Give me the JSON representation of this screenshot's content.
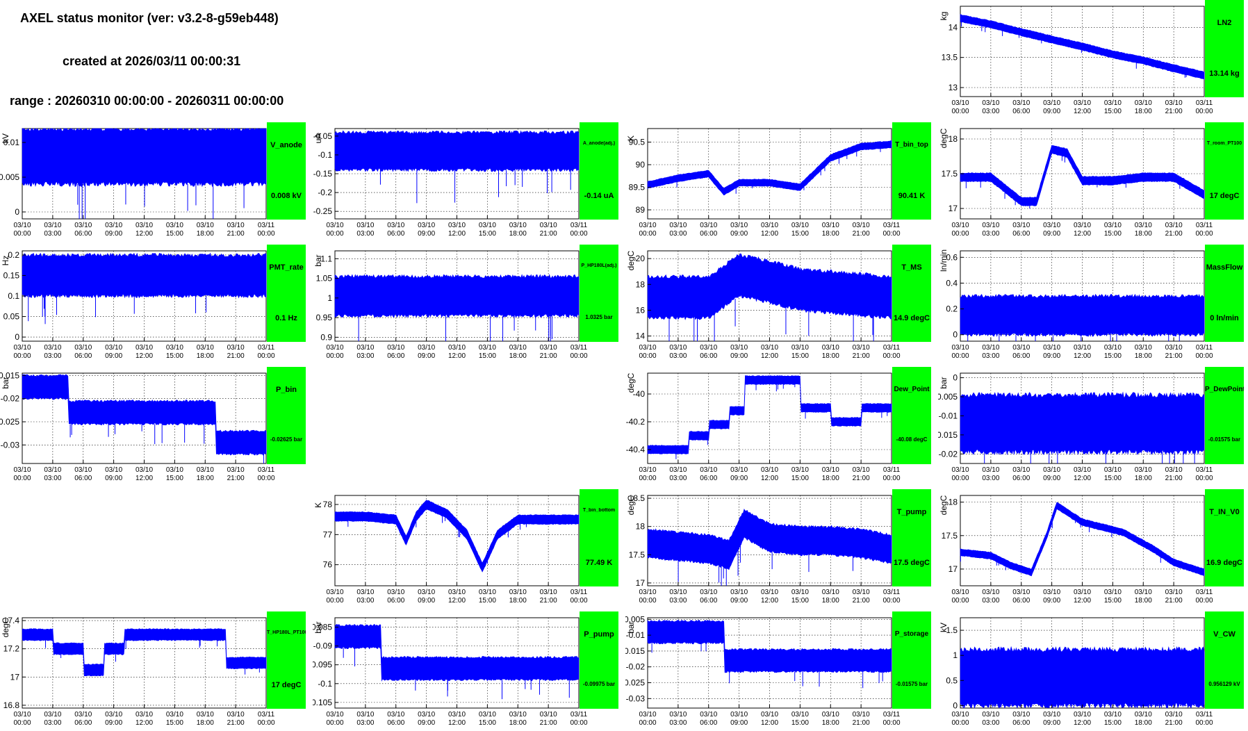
{
  "header": {
    "title": "AXEL status monitor (ver: v3.2-8-g59eb448)",
    "created": "created at 2026/03/11 00:00:31",
    "range": "range : 20260310 00:00:00 - 20260311 00:00:00"
  },
  "colors": {
    "series": "#0000ff",
    "status": "#00ff00",
    "background": "#ffffff"
  },
  "x_axis": {
    "ticks_l1": [
      "03/10",
      "03/10",
      "03/10",
      "03/10",
      "03/10",
      "03/10",
      "03/10",
      "03/10",
      "03/11"
    ],
    "ticks_l2": [
      "00:00",
      "03:00",
      "06:00",
      "09:00",
      "12:00",
      "15:00",
      "18:00",
      "21:00",
      "00:00"
    ]
  },
  "chart_data": [
    {
      "id": "LN2",
      "type": "line",
      "name": "LN2",
      "value_label": "13.14 kg",
      "unit": "kg",
      "ylim": [
        12.85,
        14.35
      ],
      "yticks": [
        "13",
        "13.5",
        "14"
      ],
      "ytick_values": [
        13,
        13.5,
        14
      ],
      "x": [
        0,
        3,
        6,
        9,
        12,
        15,
        18,
        21,
        24
      ],
      "y": [
        14.15,
        14.05,
        13.92,
        13.8,
        13.68,
        13.55,
        13.45,
        13.32,
        13.2
      ],
      "band": 0.12
    },
    {
      "id": "V_anode",
      "type": "line",
      "name": "V_anode",
      "value_label": "0.008 kV",
      "unit": "kV",
      "ylim": [
        -0.001,
        0.012
      ],
      "yticks": [
        "0",
        "0.005",
        "0.01"
      ],
      "ytick_values": [
        0,
        0.005,
        0.01
      ],
      "x": [
        0,
        24
      ],
      "y": [
        0.008,
        0.008
      ],
      "band": 0.008
    },
    {
      "id": "A_anode",
      "type": "line",
      "name": "A_anode(adj.)",
      "value_label": "-0.14 uA",
      "unit": "uA",
      "ylim": [
        -0.27,
        -0.03
      ],
      "yticks": [
        "-0.25",
        "-0.2",
        "-0.15",
        "-0.1",
        "-0.05"
      ],
      "ytick_values": [
        -0.25,
        -0.2,
        -0.15,
        -0.1,
        -0.05
      ],
      "x": [
        0,
        24
      ],
      "y": [
        -0.09,
        -0.09
      ],
      "band": 0.1
    },
    {
      "id": "T_bin_top",
      "type": "line",
      "name": "T_bin_top",
      "value_label": "90.41 K",
      "unit": "K",
      "ylim": [
        88.8,
        90.8
      ],
      "yticks": [
        "89",
        "89.5",
        "90",
        "90.5"
      ],
      "ytick_values": [
        89,
        89.5,
        90,
        90.5
      ],
      "x": [
        0,
        3,
        6,
        7.5,
        9,
        12,
        15,
        18,
        21,
        24
      ],
      "y": [
        89.55,
        89.7,
        89.8,
        89.4,
        89.6,
        89.6,
        89.5,
        90.15,
        90.4,
        90.45
      ],
      "band": 0.15
    },
    {
      "id": "T_room_PT100",
      "type": "line",
      "name": "T_room_PT100",
      "value_label": "17 degC",
      "unit": "degC",
      "ylim": [
        16.85,
        18.15
      ],
      "yticks": [
        "17",
        "17.5",
        "18"
      ],
      "ytick_values": [
        17,
        17.5,
        18
      ],
      "x": [
        0,
        3,
        6,
        7.5,
        9,
        10.5,
        12,
        15,
        18,
        21,
        24
      ],
      "y": [
        17.45,
        17.45,
        17.1,
        17.1,
        17.85,
        17.8,
        17.4,
        17.4,
        17.45,
        17.45,
        17.2
      ],
      "band": 0.12
    },
    {
      "id": "PMT_rate",
      "type": "line",
      "name": "PMT_rate",
      "value_label": "0.1 Hz",
      "unit": "Hz",
      "ylim": [
        -0.01,
        0.21
      ],
      "yticks": [
        "0",
        "0.05",
        "0.1",
        "0.15",
        "0.2"
      ],
      "ytick_values": [
        0,
        0.05,
        0.1,
        0.15,
        0.2
      ],
      "x": [
        0,
        24
      ],
      "y": [
        0.15,
        0.15
      ],
      "band": 0.1
    },
    {
      "id": "P_HP180L",
      "type": "line",
      "name": "P_HP180L(adj.)",
      "value_label": "1.0325 bar",
      "unit": "bar",
      "ylim": [
        0.89,
        1.12
      ],
      "yticks": [
        "0.9",
        "0.95",
        "1",
        "1.05",
        "1.1"
      ],
      "ytick_values": [
        0.9,
        0.95,
        1,
        1.05,
        1.1
      ],
      "x": [
        0,
        24
      ],
      "y": [
        1.005,
        1.005
      ],
      "band": 0.1
    },
    {
      "id": "T_MS",
      "type": "line",
      "name": "T_MS",
      "value_label": "14.9 degC",
      "unit": "degC",
      "ylim": [
        13.6,
        20.6
      ],
      "yticks": [
        "14",
        "16",
        "18",
        "20"
      ],
      "ytick_values": [
        14,
        16,
        18,
        20
      ],
      "x": [
        0,
        6,
        9,
        12,
        15,
        18,
        21,
        24
      ],
      "y": [
        17,
        17,
        18.7,
        18.2,
        17.6,
        17.4,
        17.2,
        17
      ],
      "band": 3.2
    },
    {
      "id": "MassFlow",
      "type": "line",
      "name": "MassFlow",
      "value_label": "0 ln/min",
      "unit": "ln/min",
      "ylim": [
        -0.05,
        0.65
      ],
      "yticks": [
        "0",
        "0.2",
        "0.4",
        "0.6"
      ],
      "ytick_values": [
        0,
        0.2,
        0.4,
        0.6
      ],
      "x": [
        0,
        24
      ],
      "y": [
        0.15,
        0.15
      ],
      "band": 0.3
    },
    {
      "id": "P_bin",
      "type": "line",
      "name": "P_bin",
      "value_label": "-0.02625 bar",
      "unit": "bar",
      "ylim": [
        -0.034,
        -0.0145
      ],
      "yticks": [
        "-0.03",
        "-0.025",
        "-0.02",
        "-0.015"
      ],
      "ytick_values": [
        -0.03,
        -0.025,
        -0.02,
        -0.015
      ],
      "x": [
        0,
        4.5,
        4.5,
        19,
        19,
        24
      ],
      "y": [
        -0.0175,
        -0.0175,
        -0.023,
        -0.023,
        -0.0295,
        -0.0295
      ],
      "band": 0.005
    },
    {
      "id": "Dew_Point",
      "type": "line",
      "name": "Dew_Point",
      "value_label": "-40.08 degC",
      "unit": "degC",
      "ylim": [
        -40.5,
        -39.85
      ],
      "yticks": [
        "-40.4",
        "-40.2",
        "-40"
      ],
      "ytick_values": [
        -40.4,
        -40.2,
        -40
      ],
      "x": [
        0,
        4,
        4,
        6,
        6,
        8,
        8,
        9.5,
        9.5,
        15,
        15,
        18,
        18,
        21,
        21,
        24
      ],
      "y": [
        -40.4,
        -40.4,
        -40.3,
        -40.3,
        -40.22,
        -40.22,
        -40.12,
        -40.12,
        -39.9,
        -39.9,
        -40.1,
        -40.1,
        -40.2,
        -40.2,
        -40.1,
        -40.1
      ],
      "band": 0.06
    },
    {
      "id": "P_DewPoint",
      "type": "line",
      "name": "P_DewPoint",
      "value_label": "-0.01575 bar",
      "unit": "bar",
      "ylim": [
        -0.0225,
        0.0012
      ],
      "yticks": [
        "-0.02",
        "-0.015",
        "-0.01",
        "-0.005",
        "0"
      ],
      "ytick_values": [
        -0.02,
        -0.015,
        -0.01,
        -0.005,
        0
      ],
      "x": [
        0,
        24
      ],
      "y": [
        -0.012,
        -0.012
      ],
      "band": 0.015
    },
    {
      "id": "T_bin_bottom",
      "type": "line",
      "name": "T_bin_bottom",
      "value_label": "77.49 K",
      "unit": "K",
      "ylim": [
        75.3,
        78.3
      ],
      "yticks": [
        "76",
        "77",
        "78"
      ],
      "ytick_values": [
        76,
        77,
        78
      ],
      "x": [
        0,
        3,
        6,
        7,
        8,
        9,
        11,
        13,
        14.5,
        16,
        18,
        21,
        24
      ],
      "y": [
        77.6,
        77.6,
        77.5,
        76.8,
        77.6,
        78,
        77.7,
        77,
        75.9,
        77,
        77.5,
        77.5,
        77.5
      ],
      "band": 0.3
    },
    {
      "id": "T_pump",
      "type": "line",
      "name": "T_pump",
      "value_label": "17.5 degC",
      "unit": "degC",
      "ylim": [
        16.95,
        18.55
      ],
      "yticks": [
        "17",
        "17.5",
        "18",
        "18.5"
      ],
      "ytick_values": [
        17,
        17.5,
        18,
        18.5
      ],
      "x": [
        0,
        6,
        8,
        9.5,
        12,
        15,
        18,
        21,
        24
      ],
      "y": [
        17.7,
        17.6,
        17.5,
        18.05,
        17.8,
        17.75,
        17.75,
        17.7,
        17.6
      ],
      "band": 0.5
    },
    {
      "id": "T_IN_V0",
      "type": "line",
      "name": "T_IN_V0",
      "value_label": "16.9 degC",
      "unit": "degC",
      "ylim": [
        16.75,
        18.1
      ],
      "yticks": [
        "17",
        "17.5",
        "18"
      ],
      "ytick_values": [
        17,
        17.5,
        18
      ],
      "x": [
        0,
        3,
        5,
        7,
        8.5,
        9.5,
        12,
        16,
        19,
        21,
        24
      ],
      "y": [
        17.25,
        17.2,
        17.05,
        16.95,
        17.5,
        17.95,
        17.7,
        17.55,
        17.3,
        17.1,
        16.95
      ],
      "band": 0.1
    },
    {
      "id": "T_HP180L_PT100",
      "type": "line",
      "name": "T_HP180L_PT100",
      "value_label": "17 degC",
      "unit": "degC",
      "ylim": [
        16.78,
        17.42
      ],
      "yticks": [
        "16.8",
        "17",
        "17.2",
        "17.4"
      ],
      "ytick_values": [
        16.8,
        17,
        17.2,
        17.4
      ],
      "x": [
        0,
        3,
        3,
        6,
        6,
        8,
        8,
        10,
        10,
        20,
        20,
        24
      ],
      "y": [
        17.3,
        17.3,
        17.2,
        17.2,
        17.05,
        17.05,
        17.2,
        17.2,
        17.3,
        17.3,
        17.1,
        17.1
      ],
      "band": 0.08
    },
    {
      "id": "P_pump",
      "type": "line",
      "name": "P_pump",
      "value_label": "-0.09975 bar",
      "unit": "bar",
      "ylim": [
        -0.1065,
        -0.0825
      ],
      "yticks": [
        "-0.105",
        "-0.1",
        "-0.095",
        "-0.09",
        "-0.085"
      ],
      "ytick_values": [
        -0.105,
        -0.1,
        -0.095,
        -0.09,
        -0.085
      ],
      "x": [
        0,
        4.5,
        4.5,
        24
      ],
      "y": [
        -0.0875,
        -0.0875,
        -0.096,
        -0.096
      ],
      "band": 0.006
    },
    {
      "id": "P_storage",
      "type": "line",
      "name": "P_storage",
      "value_label": "-0.01575 bar",
      "unit": "bar",
      "ylim": [
        -0.033,
        -0.0045
      ],
      "yticks": [
        "-0.03",
        "-0.025",
        "-0.02",
        "-0.015",
        "-0.01",
        "-0.005"
      ],
      "ytick_values": [
        -0.03,
        -0.025,
        -0.02,
        -0.015,
        -0.01,
        -0.005
      ],
      "x": [
        0,
        7.5,
        7.5,
        24
      ],
      "y": [
        -0.009,
        -0.009,
        -0.018,
        -0.018
      ],
      "band": 0.007
    },
    {
      "id": "V_CW",
      "type": "line",
      "name": "V_CW",
      "value_label": "0.956129 kV",
      "unit": "kV",
      "ylim": [
        -0.05,
        1.75
      ],
      "yticks": [
        "0",
        "0.5",
        "1",
        "1.5"
      ],
      "ytick_values": [
        0,
        0.5,
        1,
        1.5
      ],
      "x": [
        0,
        24
      ],
      "y": [
        0.56,
        0.56
      ],
      "band": 1.12
    }
  ]
}
